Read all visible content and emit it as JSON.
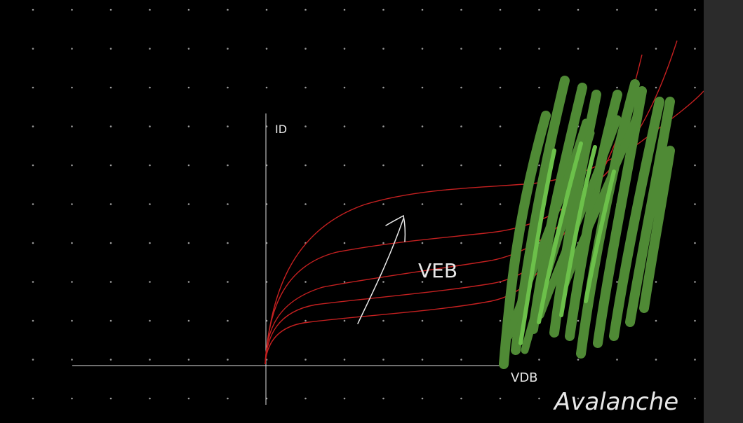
{
  "canvas": {
    "background": "#000000",
    "dot_color": "#9a9a9a"
  },
  "labels": {
    "y_axis": "ID",
    "x_axis": "VDB",
    "arrow": "VEB",
    "region": "Avalanche"
  },
  "colors": {
    "curve": "#c42020",
    "curve_light": "#e05030",
    "axis": "#e0e0e0",
    "hatch_dark": "#4f8a35",
    "hatch_light": "#6cc04a",
    "scrollbar": "#2b2b2b"
  }
}
